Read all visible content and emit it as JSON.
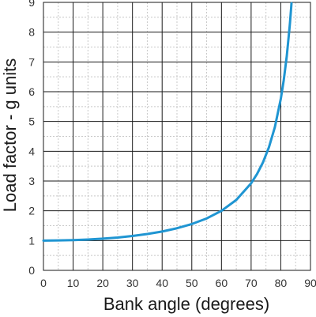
{
  "chart_data": {
    "type": "line",
    "xlabel": "Bank angle (degrees)",
    "ylabel": "Load factor - g units",
    "xlim": [
      0,
      90
    ],
    "ylim": [
      0,
      9
    ],
    "x_ticks": [
      "0",
      "10",
      "20",
      "30",
      "40",
      "50",
      "60",
      "70",
      "80",
      "90"
    ],
    "y_ticks": [
      "0",
      "1",
      "2",
      "3",
      "4",
      "5",
      "6",
      "7",
      "8",
      "9"
    ],
    "grid": true,
    "legend": "none",
    "series": [
      {
        "color": "#1f95d2",
        "x": [
          0,
          5,
          10,
          15,
          20,
          25,
          30,
          35,
          40,
          45,
          50,
          55,
          60,
          65,
          70,
          72,
          74,
          76,
          78,
          80,
          81,
          82,
          83
        ],
        "y": [
          1.0,
          1.004,
          1.015,
          1.035,
          1.064,
          1.103,
          1.155,
          1.221,
          1.305,
          1.414,
          1.556,
          1.743,
          2.0,
          2.366,
          2.924,
          3.236,
          3.628,
          4.134,
          4.81,
          5.759,
          6.392,
          7.185,
          8.206
        ]
      }
    ]
  }
}
